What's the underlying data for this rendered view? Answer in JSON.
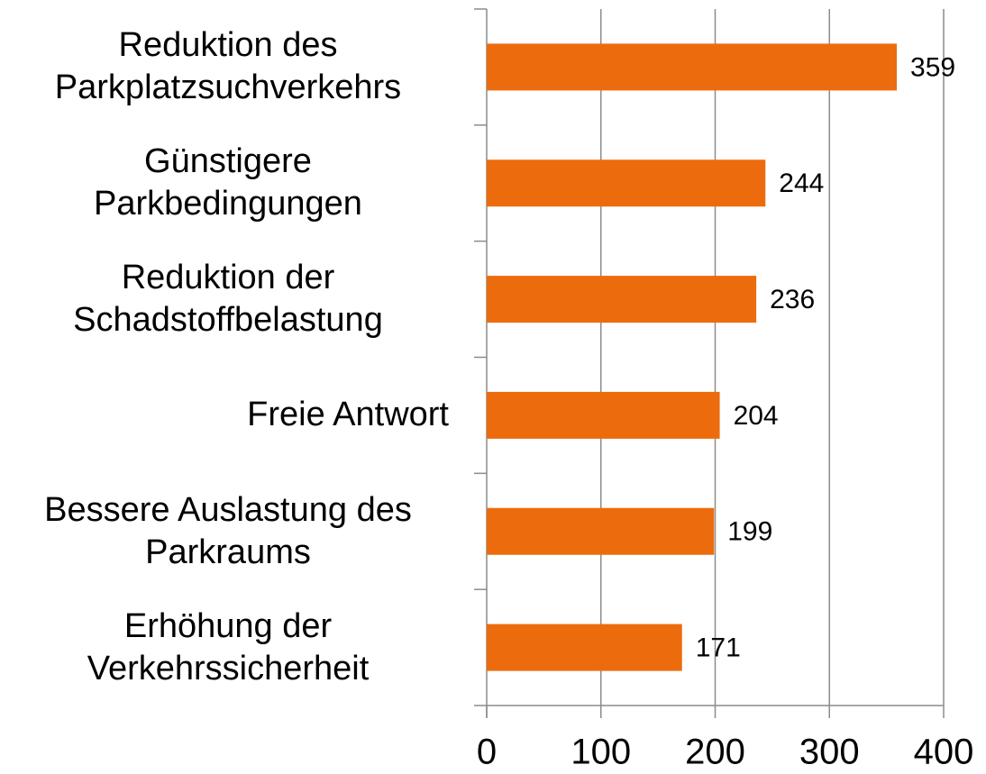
{
  "chart_data": {
    "type": "bar",
    "orientation": "horizontal",
    "categories": [
      "Reduktion des Parkplatzsuchverkehrs",
      "Günstigere Parkbedingungen",
      "Reduktion der Schadstoffbelastung",
      "Freie Antwort",
      "Bessere Auslastung des Parkraums",
      "Erhöhung der Verkehrssicherheit"
    ],
    "values": [
      359,
      244,
      236,
      204,
      199,
      171
    ],
    "color": "#ec6c0d",
    "xlim": [
      0,
      400
    ],
    "xticks": [
      0,
      100,
      200,
      300,
      400
    ],
    "grid": true
  }
}
